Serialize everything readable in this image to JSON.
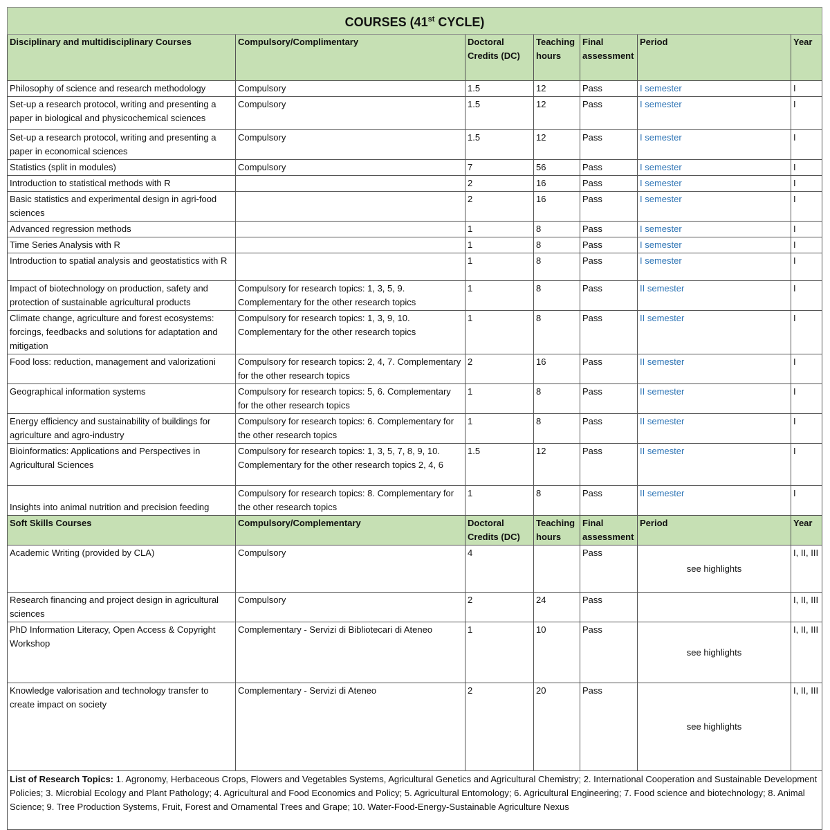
{
  "title": {
    "main": "COURSES (41",
    "sup": "st",
    "end": " CYCLE)"
  },
  "disciplinary_header": [
    "Disciplinary and multidisciplinary Courses",
    "Compulsory/Complimentary",
    "Doctoral Credits (DC)",
    "Teaching hours",
    "Final assessment",
    "Period",
    "Year"
  ],
  "disciplinary_courses": [
    {
      "course": "Philosophy of science and research methodology",
      "type": "Compulsory",
      "dc": "1.5",
      "hours": "12",
      "assessment": "Pass",
      "period": "I semester",
      "year": "I"
    },
    {
      "course": "Set-up a research protocol, writing and presenting a paper in biological and physicochemical sciences",
      "type": "Compulsory",
      "dc": "1.5",
      "hours": "12",
      "assessment": "Pass",
      "period": "I semester",
      "year": "I"
    },
    {
      "course": "Set-up a research protocol, writing and presenting a paper in economical sciences",
      "type": "Compulsory",
      "dc": "1.5",
      "hours": "12",
      "assessment": "Pass",
      "period": "I semester",
      "year": "I"
    },
    {
      "course": "Statistics (split in modules)",
      "type": "Compulsory",
      "dc": "7",
      "hours": "56",
      "assessment": "Pass",
      "period": "I semester",
      "year": "I"
    },
    {
      "course": "Introduction to statistical methods with R",
      "type": "",
      "dc": "2",
      "hours": "16",
      "assessment": "Pass",
      "period": "I semester",
      "year": "I"
    },
    {
      "course": "Basic statistics and experimental design in agri-food sciences",
      "type": "",
      "dc": "2",
      "hours": "16",
      "assessment": "Pass",
      "period": "I semester",
      "year": "I"
    },
    {
      "course": "Advanced regression methods",
      "type": "",
      "dc": "1",
      "hours": "8",
      "assessment": "Pass",
      "period": "I semester",
      "year": "I"
    },
    {
      "course": "Time Series Analysis with R",
      "type": "",
      "dc": "1",
      "hours": "8",
      "assessment": "Pass",
      "period": "I semester",
      "year": "I"
    },
    {
      "course": "Introduction to spatial analysis and geostatistics with R",
      "type": "",
      "dc": "1",
      "hours": "8",
      "assessment": "Pass",
      "period": "I semester",
      "year": "I"
    },
    {
      "course": "Impact of biotechnology on production, safety and protection of sustainable agricultural products",
      "type": "Compulsory for research topics: 1, 3, 5, 9. Complementary for the other research topics",
      "dc": "1",
      "hours": "8",
      "assessment": "Pass",
      "period": "II semester",
      "year": "I"
    },
    {
      "course": "Climate change, agriculture and forest ecosystems: forcings, feedbacks and solutions for adaptation and mitigation",
      "type": "Compulsory for research topics: 1, 3,  9, 10. Complementary for the other research topics",
      "dc": "1",
      "hours": "8",
      "assessment": "Pass",
      "period": "II semester",
      "year": "I"
    },
    {
      "course": "Food loss: reduction, management and valorizationi",
      "type": "Compulsory for research topics: 2, 4, 7. Complementary for the other research topics",
      "dc": "2",
      "hours": "16",
      "assessment": "Pass",
      "period": "II semester",
      "year": "I"
    },
    {
      "course": "Geographical information systems",
      "type": "Compulsory for research topics: 5, 6. Complementary for the other research topics",
      "dc": "1",
      "hours": "8",
      "assessment": "Pass",
      "period": "II semester",
      "year": "I"
    },
    {
      "course": "Energy efficiency and sustainability of buildings for agriculture and agro-industry",
      "type": "Compulsory for research topics: 6. Complementary for the other research topics",
      "dc": "1",
      "hours": "8",
      "assessment": "Pass",
      "period": "II semester",
      "year": "I"
    },
    {
      "course": "Bioinformatics: Applications and Perspectives in Agricultural Sciences",
      "type": "Compulsory for research topics: 1, 3, 5, 7, 8, 9, 10. Complementary for the other research topics 2, 4, 6",
      "dc": "1.5",
      "hours": "12",
      "assessment": "Pass",
      "period": "II semester",
      "year": "I"
    },
    {
      "course": "Insights into animal nutrition and precision feeding",
      "type": "Compulsory for research topics: 8. Complementary for the other research topics",
      "dc": "1",
      "hours": "8",
      "assessment": "Pass",
      "period": "II semester",
      "year": "I"
    }
  ],
  "soft_header": [
    "Soft Skills Courses",
    "Compulsory/Complementary",
    "Doctoral Credits (DC)",
    "Teaching hours",
    "Final assessment",
    "Period",
    "Year"
  ],
  "soft_courses": [
    {
      "course": "Academic Writing (provided by CLA)",
      "type": "Compulsory",
      "dc": "4",
      "hours": "",
      "assessment": "Pass",
      "period": "see highlights",
      "year": "I, II, III"
    },
    {
      "course": "Research financing and project design in agricultural sciences",
      "type": "Compulsory",
      "dc": "2",
      "hours": "24",
      "assessment": "Pass",
      "period": "",
      "year": "I, II, III"
    },
    {
      "course": "PhD Information Literacy, Open Access & Copyright Workshop",
      "type": "Complementary - Servizi di Bibliotecari di Ateneo",
      "dc": "1",
      "hours": "10",
      "assessment": "Pass",
      "period": "see highlights",
      "year": "I, II, III"
    },
    {
      "course": "Knowledge valorisation and technology transfer to create impact on society",
      "type": "Complementary - Servizi di Ateneo",
      "dc": "2",
      "hours": "20",
      "assessment": "Pass",
      "period": "see highlights",
      "year": "I, II, III"
    }
  ],
  "footer": {
    "label": "List of Research Topics:",
    "text": " 1. Agronomy, Herbaceous Crops, Flowers and Vegetables Systems, Agricultural Genetics and Agricultural Chemistry; 2. International Cooperation and Sustainable Development Policies; 3. Microbial Ecology and Plant Pathology; 4. Agricultural and Food Economics and Policy; 5. Agricultural Entomology; 6. Agricultural Engineering; 7. Food science and biotechnology; 8. Animal Science; 9. Tree Production Systems, Fruit, Forest and Ornamental Trees and Grape; 10. Water-Food-Energy-Sustainable Agriculture Nexus"
  },
  "colors": {
    "header_bg": "#c6e0b4",
    "period_link": "#2e74b5"
  }
}
